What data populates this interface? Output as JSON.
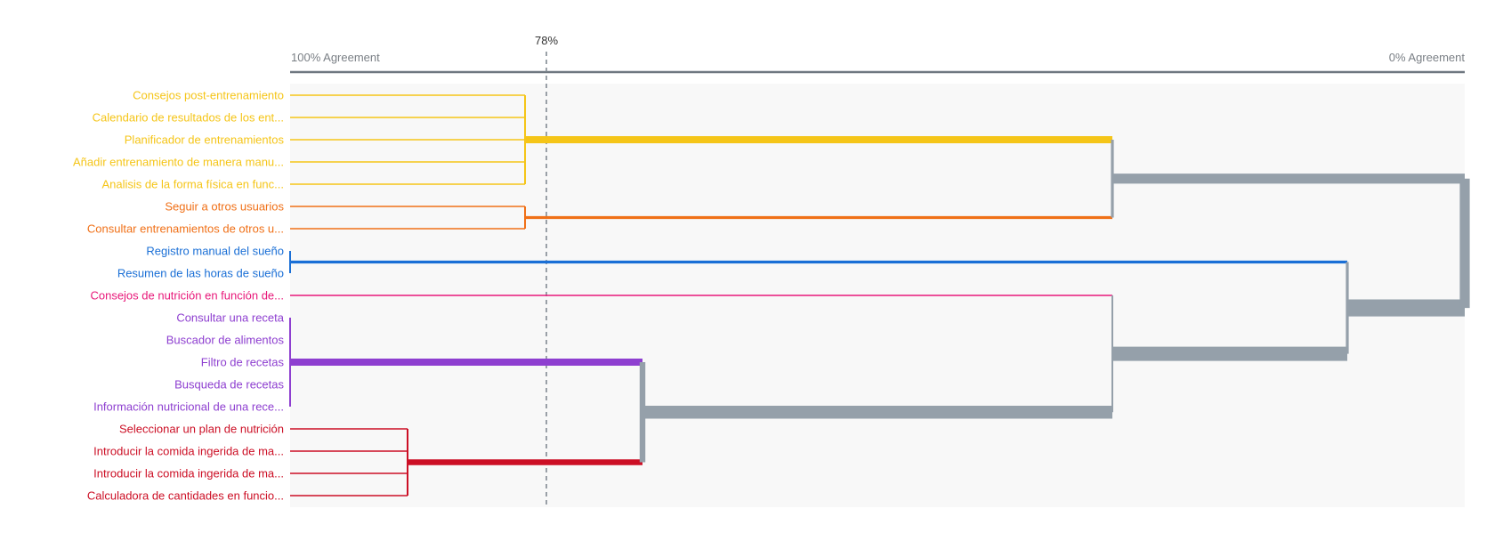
{
  "chart_data": {
    "type": "dendrogram",
    "axis": {
      "left_label": "100% Agreement",
      "right_label": "0% Agreement",
      "range": [
        100,
        0
      ]
    },
    "cut": {
      "label": "78%",
      "value": 78
    },
    "colors": {
      "yellow": "#f5c518",
      "orange": "#f07017",
      "blue": "#1a6fd6",
      "pink": "#e8197a",
      "purple": "#8e3fd0",
      "red": "#cc0f25",
      "gray": "#95a0aa"
    },
    "leaves": [
      {
        "label": "Consejos post-entrenamiento",
        "group": "yellow"
      },
      {
        "label": "Calendario de resultados de los ent...",
        "group": "yellow"
      },
      {
        "label": "Planificador de entrenamientos",
        "group": "yellow"
      },
      {
        "label": "Añadir entrenamiento de manera manu...",
        "group": "yellow"
      },
      {
        "label": "Analisis de la forma física en func...",
        "group": "yellow"
      },
      {
        "label": "Seguir a otros usuarios",
        "group": "orange"
      },
      {
        "label": "Consultar entrenamientos de otros u...",
        "group": "orange"
      },
      {
        "label": "Registro manual del sueño",
        "group": "blue"
      },
      {
        "label": "Resumen de las horas de sueño",
        "group": "blue"
      },
      {
        "label": "Consejos de nutrición en función de...",
        "group": "pink"
      },
      {
        "label": "Consultar una receta",
        "group": "purple"
      },
      {
        "label": "Buscador de alimentos",
        "group": "purple"
      },
      {
        "label": "Filtro de recetas",
        "group": "purple"
      },
      {
        "label": "Busqueda de recetas",
        "group": "purple"
      },
      {
        "label": "Información nutricional de una rece...",
        "group": "purple"
      },
      {
        "label": "Seleccionar un plan de nutrición",
        "group": "red"
      },
      {
        "label": "Introducir la comida ingerida de ma...",
        "group": "red"
      },
      {
        "label": "Introducir la comida ingerida de ma...",
        "group": "red"
      },
      {
        "label": "Calculadora de cantidades en funcio...",
        "group": "red"
      }
    ],
    "merges": [
      {
        "id": "Y",
        "agreement": 80,
        "children": [
          0,
          1,
          2,
          3,
          4
        ],
        "group": "yellow",
        "size": 5
      },
      {
        "id": "O",
        "agreement": 80,
        "children": [
          5,
          6
        ],
        "group": "orange",
        "size": 2
      },
      {
        "id": "B",
        "agreement": 100,
        "children": [
          7,
          8
        ],
        "group": "blue",
        "size": 2
      },
      {
        "id": "P",
        "agreement": 100,
        "children": [
          10,
          11,
          12,
          13,
          14
        ],
        "group": "purple",
        "size": 5
      },
      {
        "id": "R",
        "agreement": 90,
        "children": [
          15,
          16,
          17,
          18
        ],
        "group": "red",
        "size": 4
      },
      {
        "id": "YO",
        "agreement": 30,
        "children": [
          "Y",
          "O"
        ],
        "group": "gray",
        "size": 7
      },
      {
        "id": "PR",
        "agreement": 70,
        "children": [
          "P",
          "R"
        ],
        "group": "gray",
        "size": 9
      },
      {
        "id": "PRk",
        "agreement": 30,
        "children": [
          "PR",
          9
        ],
        "group": "gray",
        "size": 10
      },
      {
        "id": "PRkB",
        "agreement": 10,
        "children": [
          "PRk",
          "B"
        ],
        "group": "gray",
        "size": 12
      },
      {
        "id": "ALL",
        "agreement": 0,
        "children": [
          "YO",
          "PRkB"
        ],
        "group": "gray",
        "size": 19
      }
    ]
  }
}
